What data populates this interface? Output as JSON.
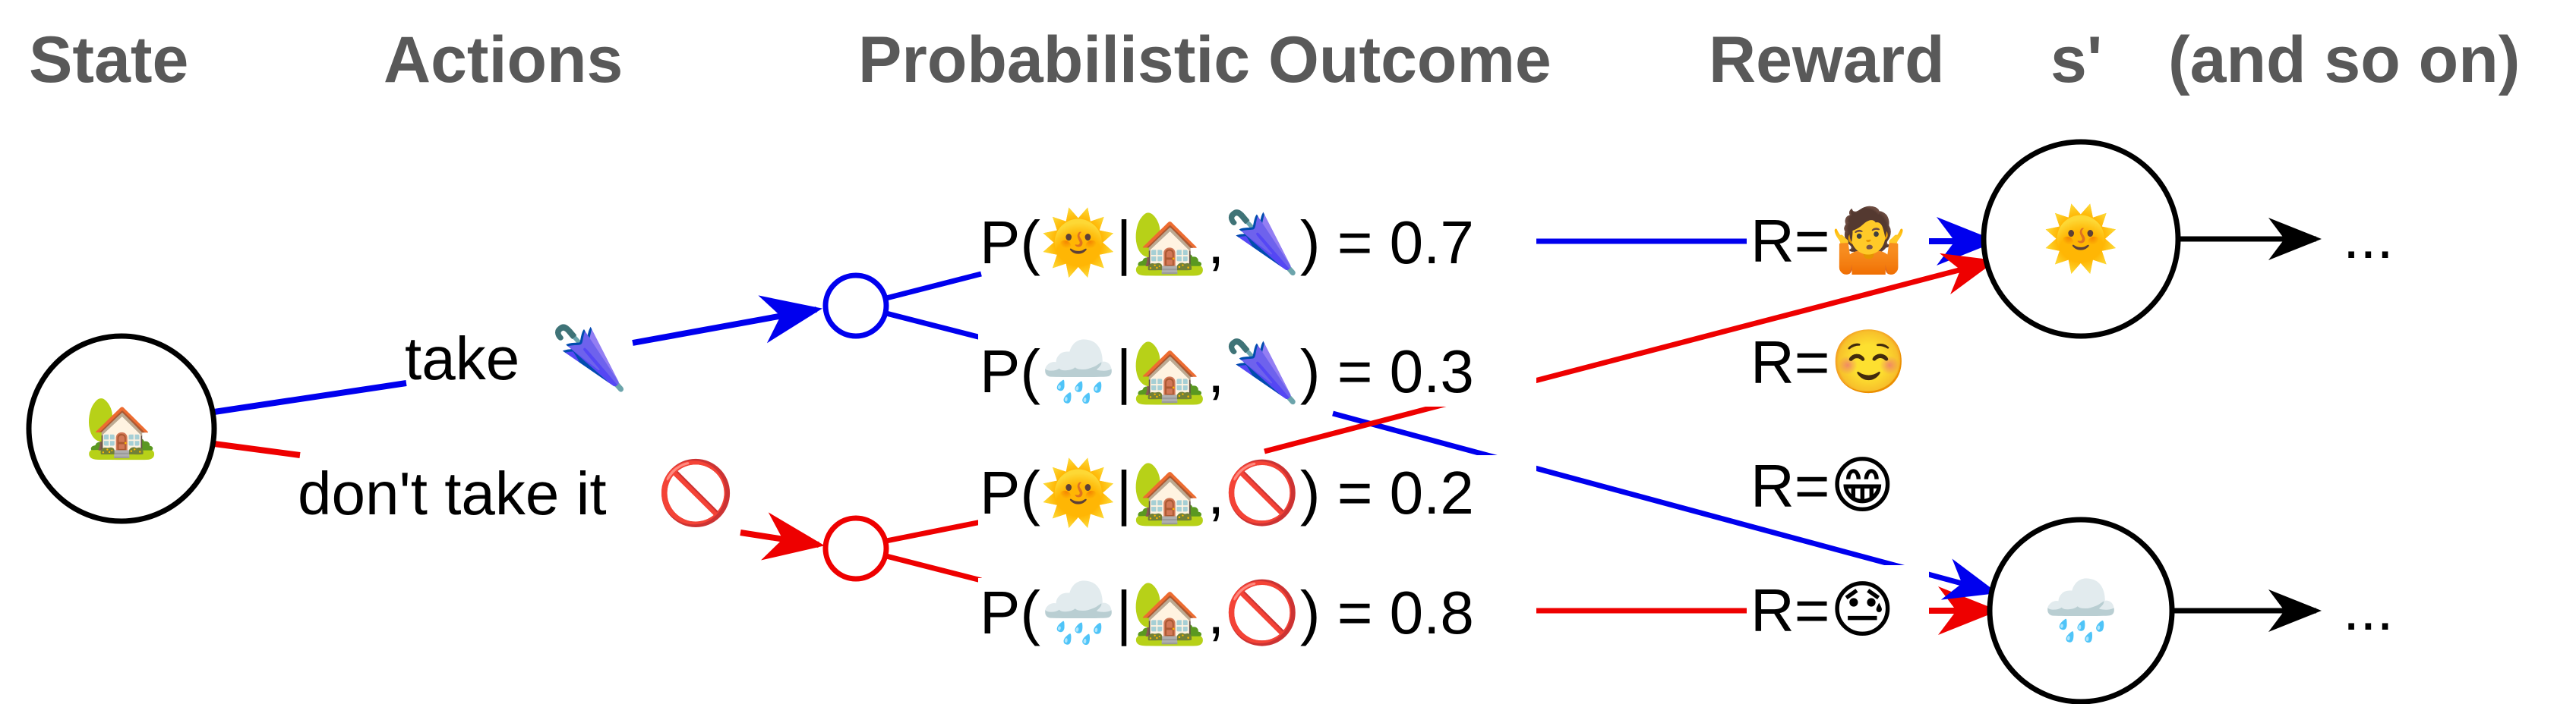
{
  "headers": {
    "state": "State",
    "actions": "Actions",
    "outcome": "Probabilistic Outcome",
    "reward": "Reward",
    "next_state": "s'",
    "etc": "(and so on)"
  },
  "nodes": {
    "start_state_icon": "🏡",
    "sunny_state_icon": "🌞",
    "rainy_state_icon": "🌧️"
  },
  "actions": {
    "take_label": "take",
    "take_icon": "🌂",
    "dont_label": "don't take it",
    "dont_icon": "🚫"
  },
  "outcomes": [
    {
      "text": "P(🌞|🏡,🌂) = 0.7"
    },
    {
      "text": "P(🌧️|🏡,🌂) = 0.3"
    },
    {
      "text": "P(🌞|🏡,🚫) = 0.2"
    },
    {
      "text": "P(🌧️|🏡,🚫) = 0.8"
    }
  ],
  "rewards": [
    {
      "prefix": "R=",
      "emoji": "🤷"
    },
    {
      "prefix": "R=",
      "emoji": "☺️"
    },
    {
      "prefix": "R=",
      "emoji": "😁"
    },
    {
      "prefix": "R=",
      "emoji": "😓"
    }
  ],
  "continuations": [
    "...",
    "..."
  ],
  "colors": {
    "take_action": "#0000ee",
    "dont_action": "#ee0000",
    "neutral": "#000000",
    "reward_highlight": "#009900",
    "header": "#595959"
  }
}
